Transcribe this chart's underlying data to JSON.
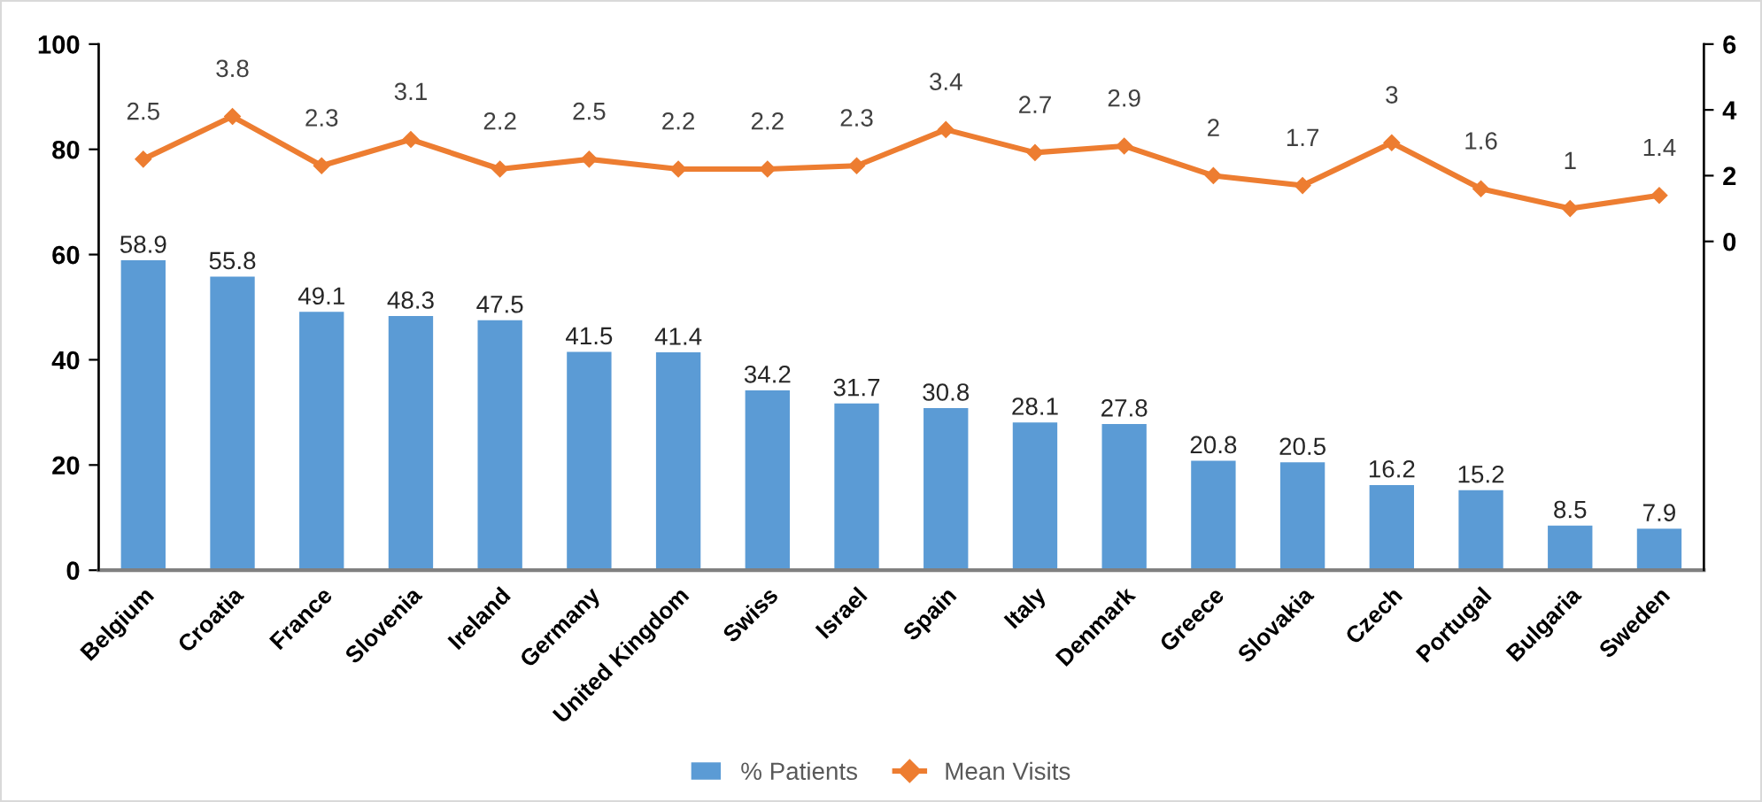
{
  "chart_data": {
    "type": "bar",
    "categories": [
      "Belgium",
      "Croatia",
      "France",
      "Slovenia",
      "Ireland",
      "Germany",
      "United Kingdom",
      "Swiss",
      "Israel",
      "Spain",
      "Italy",
      "Denmark",
      "Greece",
      "Slovakia",
      "Czech",
      "Portugal",
      "Bulgaria",
      "Sweden"
    ],
    "series": [
      {
        "name": "% Patients",
        "color": "#5b9bd5",
        "values": [
          58.9,
          55.8,
          49.1,
          48.3,
          47.5,
          41.5,
          41.4,
          34.2,
          31.7,
          30.8,
          28.1,
          27.8,
          20.8,
          20.5,
          16.2,
          15.2,
          8.5,
          7.9
        ]
      },
      {
        "name": "Mean Visits",
        "type": "line",
        "axis": "y2",
        "color": "#ed7d31",
        "marker": "diamond",
        "values": [
          2.5,
          3.8,
          2.3,
          3.1,
          2.2,
          2.5,
          2.2,
          2.2,
          2.3,
          3.4,
          2.7,
          2.9,
          2,
          1.7,
          3,
          1.6,
          1,
          1.4
        ]
      }
    ],
    "ylim": [
      0,
      100
    ],
    "yticks": [
      0,
      20,
      40,
      60,
      80,
      100
    ],
    "y2lim": [
      -10,
      6
    ],
    "y2ticks": [
      0,
      2,
      4,
      6
    ],
    "data_labels": true,
    "legend": "bottom"
  }
}
